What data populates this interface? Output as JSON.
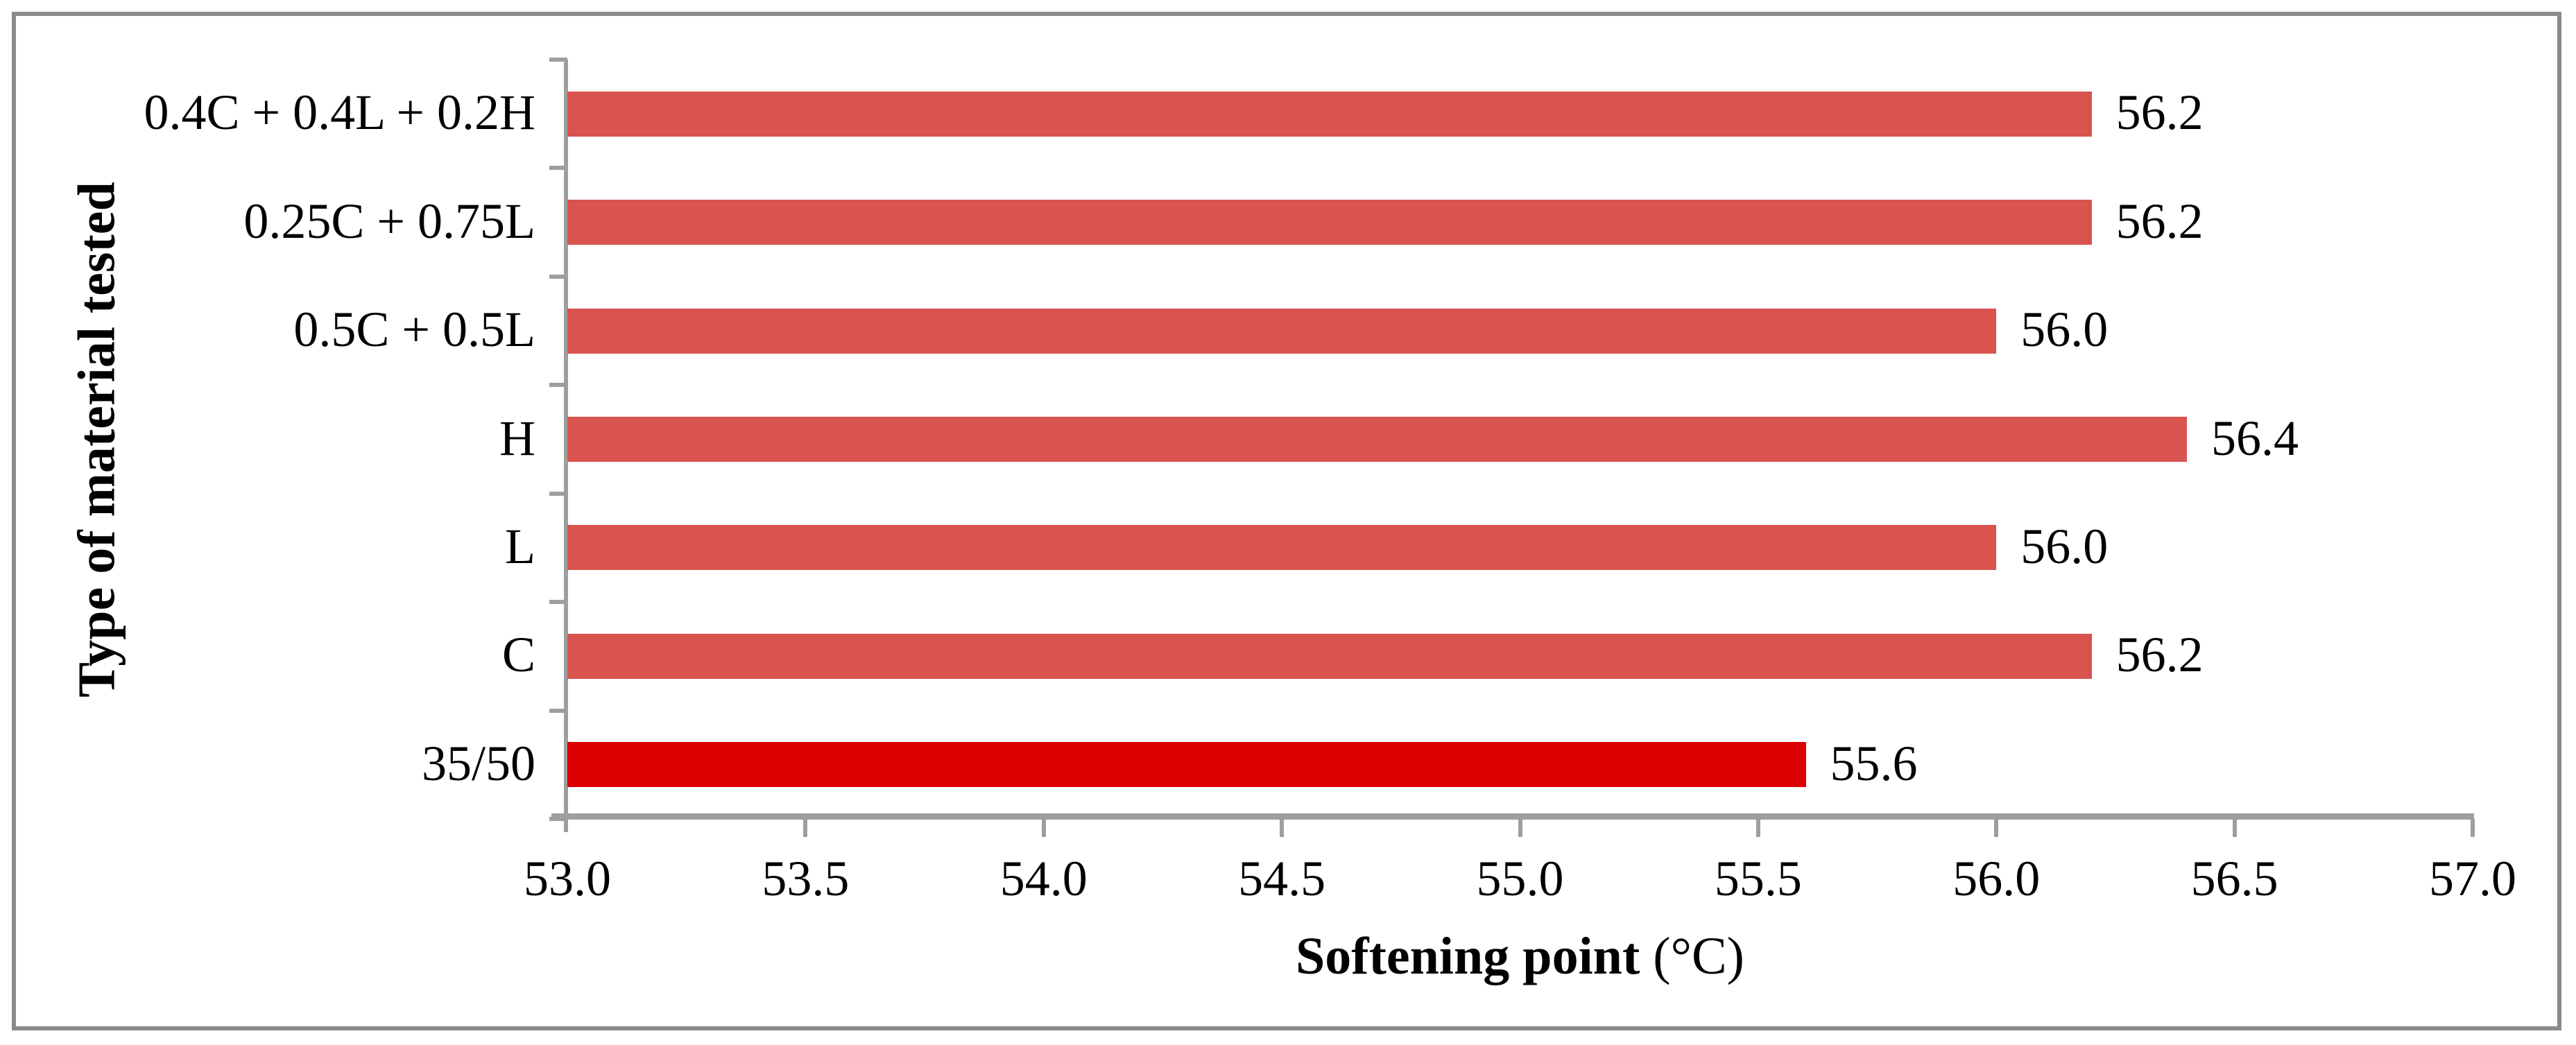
{
  "chart_data": {
    "type": "bar",
    "orientation": "horizontal",
    "title": "",
    "xlabel_bold": "Softening point",
    "xlabel_unit": " (°C)",
    "ylabel": "Type of material tested",
    "categories": [
      "0.4C + 0.4L + 0.2H",
      "0.25C + 0.75L",
      "0.5C + 0.5L",
      "H",
      "L",
      "C",
      "35/50"
    ],
    "values": [
      56.2,
      56.2,
      56.0,
      56.4,
      56.0,
      56.2,
      55.6
    ],
    "value_labels": [
      "56.2",
      "56.2",
      "56.0",
      "56.4",
      "56.0",
      "56.2",
      "55.6"
    ],
    "xlim": [
      53.0,
      57.0
    ],
    "xtick_step": 0.5,
    "xticks": [
      "53.0",
      "53.5",
      "54.0",
      "54.5",
      "55.0",
      "55.5",
      "56.0",
      "56.5",
      "57.0"
    ],
    "grid": false,
    "legend": false,
    "colors": {
      "bar_default": "#d9534f",
      "bar_highlight": "#dd0000",
      "axis": "#9e9e9e",
      "frame_border": "#8a8a8a",
      "text": "#000000"
    },
    "highlight_index": 6
  }
}
